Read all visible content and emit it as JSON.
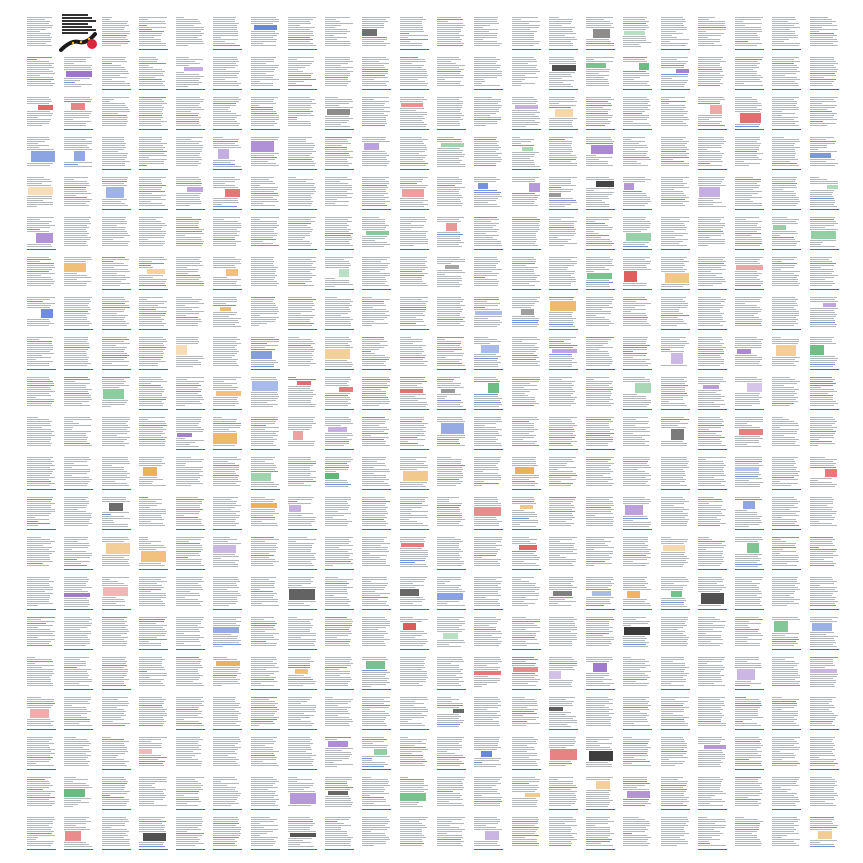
{
  "view": {
    "rows": 21,
    "cols": 22,
    "page_count": 462
  },
  "cover": {
    "title_lines": [],
    "badge_color": "#d7263d"
  },
  "colors": {
    "text_gray": "#9aa0a6",
    "accent_red": "#d83a3a",
    "link_blue": "#4a6fd1",
    "figure_green": "#3aa65a",
    "figure_orange": "#e8a33a",
    "figure_purple": "#8a5cc2",
    "figure_dark": "#111111"
  }
}
